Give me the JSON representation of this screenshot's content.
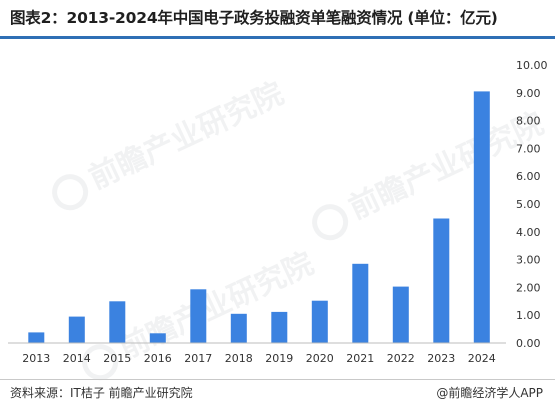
{
  "title": "图表2：2013-2024年中国电子政务投融资单笔融资情况 (单位：亿元)",
  "source": "资料来源：IT桔子 前瞻产业研究院",
  "brand": "@前瞻经济学人APP",
  "watermark": "前瞻产业研究院",
  "colors": {
    "bar": "#3b82e0",
    "rule": "#2f6fb5"
  },
  "chart_data": {
    "type": "bar",
    "categories": [
      "2013",
      "2014",
      "2015",
      "2016",
      "2017",
      "2018",
      "2019",
      "2020",
      "2021",
      "2022",
      "2023",
      "2024"
    ],
    "values": [
      0.38,
      0.95,
      1.5,
      0.35,
      1.93,
      1.05,
      1.12,
      1.52,
      2.85,
      2.03,
      4.48,
      9.05
    ],
    "yticks": [
      "0.00",
      "1.00",
      "2.00",
      "3.00",
      "4.00",
      "5.00",
      "6.00",
      "7.00",
      "8.00",
      "9.00",
      "10.00"
    ],
    "ylim": [
      0,
      10
    ],
    "grid": false,
    "y_axis_position": "right"
  }
}
